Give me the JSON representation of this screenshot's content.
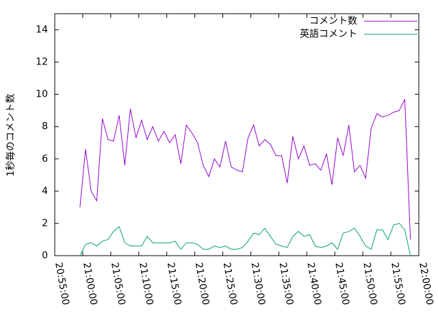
{
  "chart_data": {
    "type": "line",
    "y_label": "1秒毎のコメント数",
    "x": [
      "20:59:30",
      "21:00:30",
      "21:01:30",
      "21:02:30",
      "21:03:30",
      "21:04:30",
      "21:05:30",
      "21:06:30",
      "21:07:30",
      "21:08:30",
      "21:09:30",
      "21:10:30",
      "21:11:30",
      "21:12:30",
      "21:13:30",
      "21:14:30",
      "21:15:30",
      "21:16:30",
      "21:17:30",
      "21:18:30",
      "21:19:30",
      "21:20:30",
      "21:21:30",
      "21:22:30",
      "21:23:30",
      "21:24:30",
      "21:25:30",
      "21:26:30",
      "21:27:30",
      "21:28:30",
      "21:29:30",
      "21:30:30",
      "21:31:30",
      "21:32:30",
      "21:33:30",
      "21:34:30",
      "21:35:30",
      "21:36:30",
      "21:37:30",
      "21:38:30",
      "21:39:30",
      "21:40:30",
      "21:41:30",
      "21:42:30",
      "21:43:30",
      "21:44:30",
      "21:45:30",
      "21:46:30",
      "21:47:30",
      "21:48:30",
      "21:49:30",
      "21:50:30",
      "21:51:30",
      "21:52:30",
      "21:53:30",
      "21:54:30",
      "21:55:30",
      "21:56:30",
      "21:57:30",
      "21:58:30"
    ],
    "series": [
      {
        "name": "コメント数",
        "color": "#9400d3",
        "values": [
          3.0,
          6.6,
          4.0,
          3.4,
          8.5,
          7.2,
          7.1,
          8.7,
          5.6,
          9.1,
          7.3,
          8.4,
          7.2,
          8.0,
          7.1,
          7.7,
          7.0,
          7.5,
          5.7,
          8.1,
          7.6,
          7.0,
          5.6,
          4.9,
          6.0,
          5.5,
          7.1,
          5.5,
          5.3,
          5.2,
          7.3,
          8.1,
          6.8,
          7.2,
          6.9,
          6.2,
          6.2,
          4.5,
          7.4,
          6.0,
          6.8,
          5.6,
          5.7,
          5.3,
          6.3,
          4.4,
          7.3,
          6.2,
          8.1,
          5.2,
          5.6,
          4.8,
          7.9,
          8.8,
          8.6,
          8.7,
          8.9,
          9.0,
          9.7,
          1.0
        ]
      },
      {
        "name": "英語コメント",
        "color": "#009e73",
        "values": [
          0.0,
          0.7,
          0.8,
          0.6,
          0.9,
          1.0,
          1.5,
          1.8,
          0.8,
          0.6,
          0.6,
          0.6,
          1.2,
          0.8,
          0.8,
          0.8,
          0.8,
          0.9,
          0.4,
          0.8,
          0.8,
          0.7,
          0.4,
          0.4,
          0.6,
          0.5,
          0.6,
          0.4,
          0.4,
          0.5,
          0.9,
          1.4,
          1.3,
          1.7,
          1.2,
          0.7,
          0.6,
          0.5,
          1.2,
          1.5,
          1.2,
          1.3,
          0.6,
          0.5,
          0.6,
          0.8,
          0.4,
          1.4,
          1.5,
          1.7,
          1.2,
          0.6,
          0.4,
          1.6,
          1.6,
          1.0,
          1.9,
          2.0,
          1.6,
          0.0
        ]
      }
    ],
    "xlim": [
      "20:55:00",
      "22:00:00"
    ],
    "xticks": [
      "20:55:00",
      "21:00:00",
      "21:05:00",
      "21:10:00",
      "21:15:00",
      "21:20:00",
      "21:25:00",
      "21:30:00",
      "21:35:00",
      "21:40:00",
      "21:45:00",
      "21:50:00",
      "21:55:00",
      "22:00:00"
    ],
    "ylim": [
      0,
      15
    ],
    "yticks": [
      0,
      2,
      4,
      6,
      8,
      10,
      12,
      14
    ],
    "legend": "top-right"
  }
}
